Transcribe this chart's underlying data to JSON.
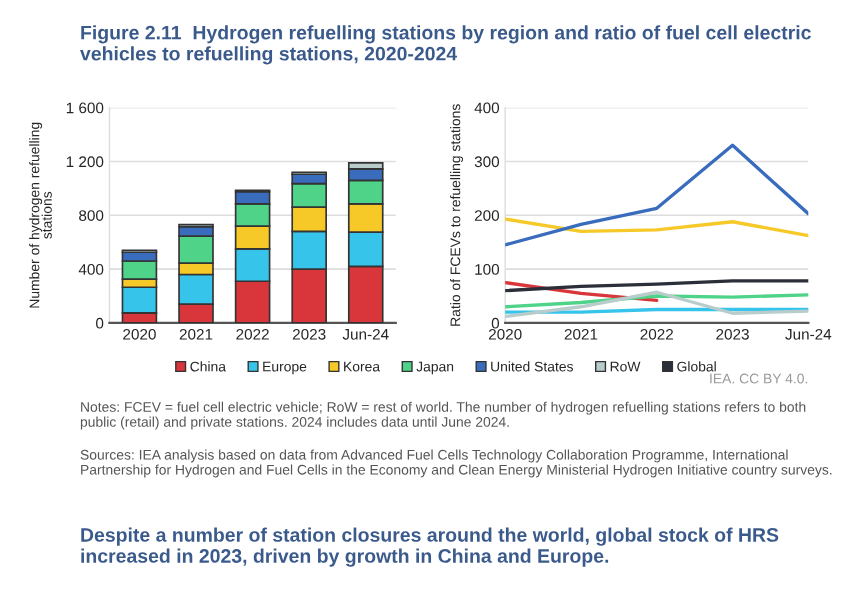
{
  "chart_data": [
    {
      "type": "bar",
      "stacked": true,
      "title": "Figure 2.11  Hydrogen refuelling stations by region and ratio of fuel cell electric vehicles to refuelling stations, 2020-2024",
      "ylabel": "Number of hydrogen refuelling\nstations",
      "categories": [
        "2020",
        "2021",
        "2022",
        "2023",
        "Jun-24"
      ],
      "series": [
        {
          "name": "China",
          "color": "#d9363b",
          "values": [
            75,
            140,
            310,
            400,
            420
          ]
        },
        {
          "name": "Europe",
          "color": "#36c4ea",
          "values": [
            190,
            220,
            240,
            280,
            255
          ]
        },
        {
          "name": "Korea",
          "color": "#f6c928",
          "values": [
            60,
            85,
            170,
            180,
            210
          ]
        },
        {
          "name": "Japan",
          "color": "#4fd389",
          "values": [
            135,
            200,
            165,
            175,
            175
          ]
        },
        {
          "name": "United States",
          "color": "#3a6cbd",
          "values": [
            65,
            70,
            90,
            70,
            85
          ]
        },
        {
          "name": "RoW",
          "color": "#b9cccc",
          "values": [
            15,
            15,
            10,
            15,
            45
          ]
        }
      ],
      "ylim": [
        0,
        1600
      ],
      "yticks": [
        0,
        400,
        800,
        {
          "value": 1200,
          "label": "1 200"
        },
        {
          "value": 1600,
          "label": "1 600"
        }
      ],
      "grid": "y",
      "legend": "bottom",
      "annotations": [
        "Notes: FCEV = fuel cell electric vehicle; RoW = rest of world. The number of hydrogen refuelling stations refers to both public (retail) and private stations. 2024 includes data until June 2024.",
        "Sources: IEA analysis based on data from Advanced Fuel Cells Technology Collaboration Programme, International Partnership for Hydrogen and Fuel Cells in the Economy and Clean Energy Ministerial Hydrogen Initiative country surveys.",
        "IEA. CC BY 4.0.",
        "Despite a number of station closures around the world, global stock of HRS increased in 2023, driven by growth in China and Europe."
      ]
    },
    {
      "type": "line",
      "ylabel": "Ratio of FCEVs to refuelling stations",
      "categories": [
        "2020",
        "2021",
        "2022",
        "2023",
        "Jun-24"
      ],
      "series": [
        {
          "name": "China",
          "color": "#d9363b",
          "values": [
            75,
            55,
            42,
            null,
            null
          ]
        },
        {
          "name": "Europe",
          "color": "#36c4ea",
          "values": [
            20,
            20,
            25,
            25,
            25
          ]
        },
        {
          "name": "Korea",
          "color": "#f6c928",
          "values": [
            193,
            170,
            173,
            188,
            162
          ]
        },
        {
          "name": "Japan",
          "color": "#4fd389",
          "values": [
            30,
            38,
            50,
            48,
            52
          ]
        },
        {
          "name": "United States",
          "color": "#3a6cbd",
          "values": [
            145,
            183,
            213,
            330,
            203
          ]
        },
        {
          "name": "RoW",
          "color": "#b9cccc",
          "values": [
            12,
            30,
            57,
            18,
            22
          ]
        },
        {
          "name": "Global",
          "color": "#2b2f3a",
          "values": [
            60,
            68,
            72,
            78,
            78
          ]
        }
      ],
      "ylim": [
        0,
        400
      ],
      "yticks": [
        0,
        100,
        200,
        300,
        400
      ],
      "grid": "y",
      "legend": "bottom"
    }
  ]
}
